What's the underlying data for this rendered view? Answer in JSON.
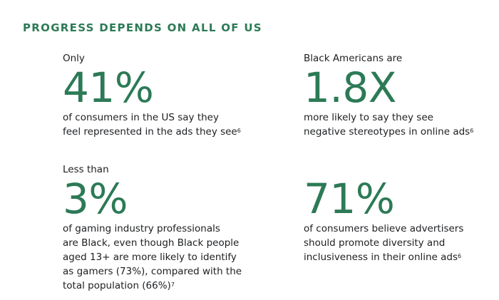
{
  "heading": "PROGRESS DEPENDS ON ALL OF US",
  "colors": {
    "accent": "#2c7a56",
    "text": "#1c1e21"
  },
  "stats": [
    {
      "lead": "Only",
      "value": "41%",
      "description": "of consumers in the US say they\nfeel represented in the ads they see",
      "footnote": "6"
    },
    {
      "lead": "Black Americans are",
      "value": "1.8X",
      "description": "more likely to say they see\nnegative stereotypes in online ads",
      "footnote": "6"
    },
    {
      "lead": "Less than",
      "value": "3%",
      "description": "of gaming industry professionals\nare Black, even though Black people\naged 13+ are more likely to identify\nas gamers (73%), compared with the\ntotal population (66%)",
      "footnote": "7"
    },
    {
      "lead": "",
      "value": "71%",
      "description": "of consumers believe advertisers\nshould promote diversity and\ninclusiveness in their online ads",
      "footnote": "6"
    }
  ]
}
